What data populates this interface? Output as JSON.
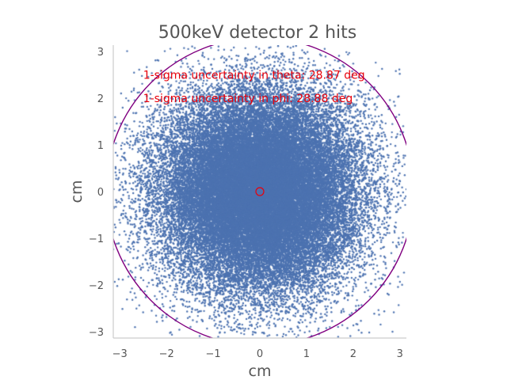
{
  "chart_data": {
    "type": "scatter",
    "title": "500keV detector 2 hits",
    "xlabel": "cm",
    "ylabel": "cm",
    "xlim": [
      -3.14,
      3.14
    ],
    "ylim": [
      -3.14,
      3.14
    ],
    "xticks": [
      -3,
      -2,
      -1,
      0,
      1,
      2,
      3
    ],
    "yticks": [
      -3,
      -2,
      -1,
      0,
      1,
      2,
      3
    ],
    "tick_labels": [
      "−3",
      "−2",
      "−1",
      "0",
      "1",
      "2",
      "3"
    ],
    "grid": false,
    "point_color": "#4c72b0",
    "point_distribution": {
      "center": [
        0,
        0
      ],
      "sigma_cm": 1.05,
      "approx_points": 42000
    },
    "center_marker": {
      "x": 0,
      "y": 0,
      "color": "#e8000b"
    },
    "uncertainty_circle": {
      "center": [
        0,
        0
      ],
      "radius_cm": 3.3,
      "color": "#800080"
    },
    "annotations": [
      {
        "text": "1-sigma uncertainty in theta: 28.87 deg",
        "x": -2.5,
        "y": 2.5
      },
      {
        "text": "1-sigma uncertainty in phi: 28.88 deg",
        "x": -2.5,
        "y": 2.0
      }
    ],
    "annotation_color": "#e8000b"
  }
}
